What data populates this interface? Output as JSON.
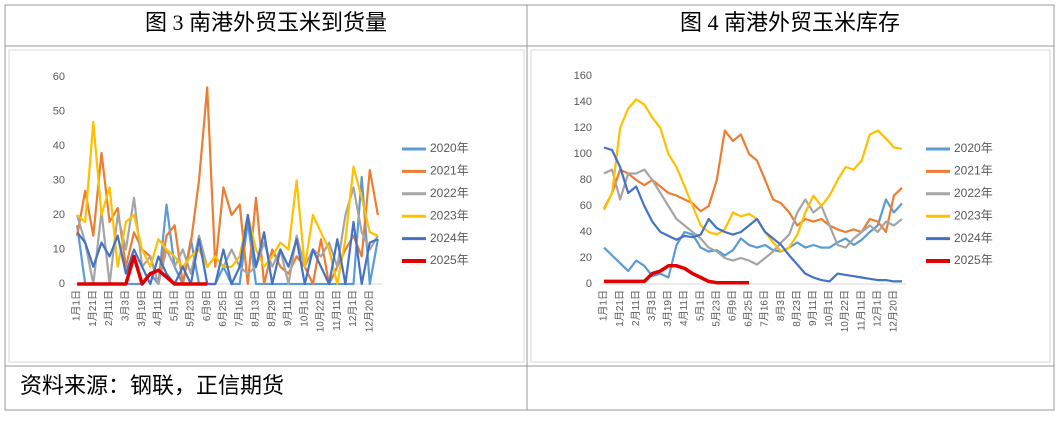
{
  "chart_data": [
    {
      "type": "line",
      "title": "图 3  南港外贸玉米到货量",
      "categories": [
        "1月1日",
        null,
        "1月21日",
        null,
        "2月11日",
        null,
        "3月3日",
        null,
        "3月19日",
        null,
        "4月11日",
        null,
        "5月1日",
        null,
        "5月23日",
        null,
        "6月9日",
        null,
        "6月25日",
        null,
        "7月16日",
        null,
        "8月13日",
        null,
        "8月29日",
        null,
        "9月11日",
        null,
        "10月1日",
        null,
        "10月22日",
        null,
        "11月11日",
        null,
        "12月1日",
        null,
        "12月20日",
        null
      ],
      "ylim": [
        0,
        60
      ],
      "yticks": [
        0,
        10,
        20,
        30,
        40,
        50,
        60
      ],
      "series": [
        {
          "name": "2020年",
          "color": "#5b9bd5",
          "values": [
            17,
            0,
            0,
            0,
            0,
            0,
            0,
            0,
            0,
            3,
            0,
            23,
            5,
            0,
            13,
            0,
            0,
            0,
            5,
            0,
            0,
            18,
            0,
            0,
            0,
            0,
            0,
            0,
            0,
            0,
            0,
            0,
            0,
            0,
            0,
            31,
            0,
            13
          ]
        },
        {
          "name": "2021年",
          "color": "#ed7d31",
          "values": [
            14,
            27,
            14,
            38,
            18,
            22,
            5,
            15,
            10,
            8,
            0,
            14,
            17,
            0,
            12,
            30,
            57,
            5,
            28,
            20,
            23,
            0,
            25,
            0,
            10,
            5,
            3,
            8,
            5,
            0,
            13,
            0,
            5,
            10,
            14,
            8,
            33,
            20
          ]
        },
        {
          "name": "2022年",
          "color": "#a5a5a5",
          "values": [
            20,
            12,
            0,
            21,
            0,
            20,
            10,
            25,
            5,
            8,
            0,
            10,
            5,
            10,
            3,
            14,
            5,
            8,
            5,
            10,
            5,
            3,
            5,
            12,
            5,
            10,
            0,
            14,
            5,
            10,
            8,
            12,
            5,
            20,
            28,
            15,
            10,
            14
          ]
        },
        {
          "name": "2023年",
          "color": "#ffc000",
          "values": [
            20,
            18,
            47,
            20,
            28,
            5,
            18,
            20,
            10,
            5,
            13,
            10,
            8,
            5,
            8,
            10,
            5,
            8,
            5,
            5,
            8,
            20,
            10,
            5,
            8,
            12,
            10,
            30,
            5,
            20,
            15,
            10,
            0,
            13,
            34,
            25,
            15,
            14
          ]
        },
        {
          "name": "2024年",
          "color": "#4472c4",
          "values": [
            15,
            12,
            5,
            12,
            8,
            14,
            3,
            10,
            5,
            0,
            8,
            3,
            0,
            5,
            0,
            13,
            0,
            0,
            10,
            0,
            5,
            20,
            5,
            15,
            0,
            10,
            5,
            13,
            0,
            10,
            5,
            0,
            13,
            0,
            18,
            0,
            12,
            13
          ]
        },
        {
          "name": "2025年",
          "color": "#e00000",
          "values": [
            0,
            0,
            0,
            0,
            0,
            0,
            0,
            8,
            0,
            3,
            4,
            2,
            0,
            0,
            0,
            0,
            0,
            null,
            null,
            null,
            null,
            null,
            null,
            null,
            null,
            null,
            null,
            null,
            null,
            null,
            null,
            null,
            null,
            null,
            null,
            null,
            null,
            null
          ]
        }
      ]
    },
    {
      "type": "line",
      "title": "图 4  南港外贸玉米库存",
      "categories": [
        "1月1日",
        null,
        "1月21日",
        null,
        "2月11日",
        null,
        "3月3日",
        null,
        "3月19日",
        null,
        "4月11日",
        null,
        "5月1日",
        null,
        "5月23日",
        null,
        "6月9日",
        null,
        "6月25日",
        null,
        "7月16日",
        null,
        "8月3日",
        null,
        "8月23日",
        null,
        "9月11日",
        null,
        "10月1日",
        null,
        "10月22日",
        null,
        "11月11日",
        null,
        "12月1日",
        null,
        "12月20日",
        null
      ],
      "ylim": [
        0,
        160
      ],
      "yticks": [
        0,
        20,
        40,
        60,
        80,
        100,
        120,
        140,
        160
      ],
      "series": [
        {
          "name": "2020年",
          "color": "#5b9bd5",
          "values": [
            28,
            22,
            16,
            10,
            18,
            14,
            6,
            8,
            5,
            30,
            40,
            38,
            28,
            25,
            26,
            22,
            26,
            35,
            30,
            28,
            30,
            26,
            25,
            28,
            32,
            28,
            30,
            28,
            28,
            32,
            35,
            30,
            34,
            40,
            45,
            65,
            55,
            62
          ]
        },
        {
          "name": "2021年",
          "color": "#ed7d31",
          "values": [
            58,
            70,
            88,
            85,
            80,
            76,
            80,
            75,
            70,
            68,
            65,
            62,
            56,
            60,
            80,
            118,
            110,
            115,
            100,
            95,
            80,
            65,
            62,
            55,
            45,
            50,
            48,
            50,
            45,
            42,
            40,
            42,
            40,
            50,
            48,
            40,
            68,
            74
          ]
        },
        {
          "name": "2022年",
          "color": "#a5a5a5",
          "values": [
            85,
            88,
            65,
            85,
            85,
            88,
            80,
            70,
            60,
            50,
            45,
            40,
            35,
            28,
            25,
            20,
            18,
            20,
            18,
            15,
            20,
            25,
            32,
            38,
            55,
            65,
            55,
            60,
            45,
            30,
            28,
            35,
            40,
            45,
            40,
            48,
            45,
            50
          ]
        },
        {
          "name": "2023年",
          "color": "#ffc000",
          "values": [
            57,
            70,
            120,
            135,
            142,
            138,
            128,
            120,
            100,
            90,
            75,
            60,
            45,
            40,
            38,
            42,
            55,
            52,
            54,
            50,
            40,
            32,
            25,
            28,
            38,
            55,
            68,
            60,
            68,
            80,
            90,
            88,
            95,
            115,
            118,
            112,
            105,
            104
          ]
        },
        {
          "name": "2024年",
          "color": "#4472c4",
          "values": [
            105,
            103,
            90,
            70,
            75,
            60,
            48,
            40,
            37,
            34,
            37,
            36,
            38,
            50,
            43,
            40,
            38,
            40,
            45,
            50,
            40,
            35,
            30,
            22,
            15,
            8,
            5,
            3,
            2,
            8,
            7,
            6,
            5,
            4,
            3,
            3,
            2,
            2
          ]
        },
        {
          "name": "2025年",
          "color": "#e00000",
          "values": [
            2,
            2,
            2,
            2,
            2,
            2,
            8,
            10,
            14,
            14,
            12,
            8,
            5,
            2,
            1,
            1,
            1,
            1,
            1,
            null,
            null,
            null,
            null,
            null,
            null,
            null,
            null,
            null,
            null,
            null,
            null,
            null,
            null,
            null,
            null,
            null,
            null,
            null
          ]
        }
      ]
    }
  ],
  "source": "资料来源：钢联，正信期货"
}
